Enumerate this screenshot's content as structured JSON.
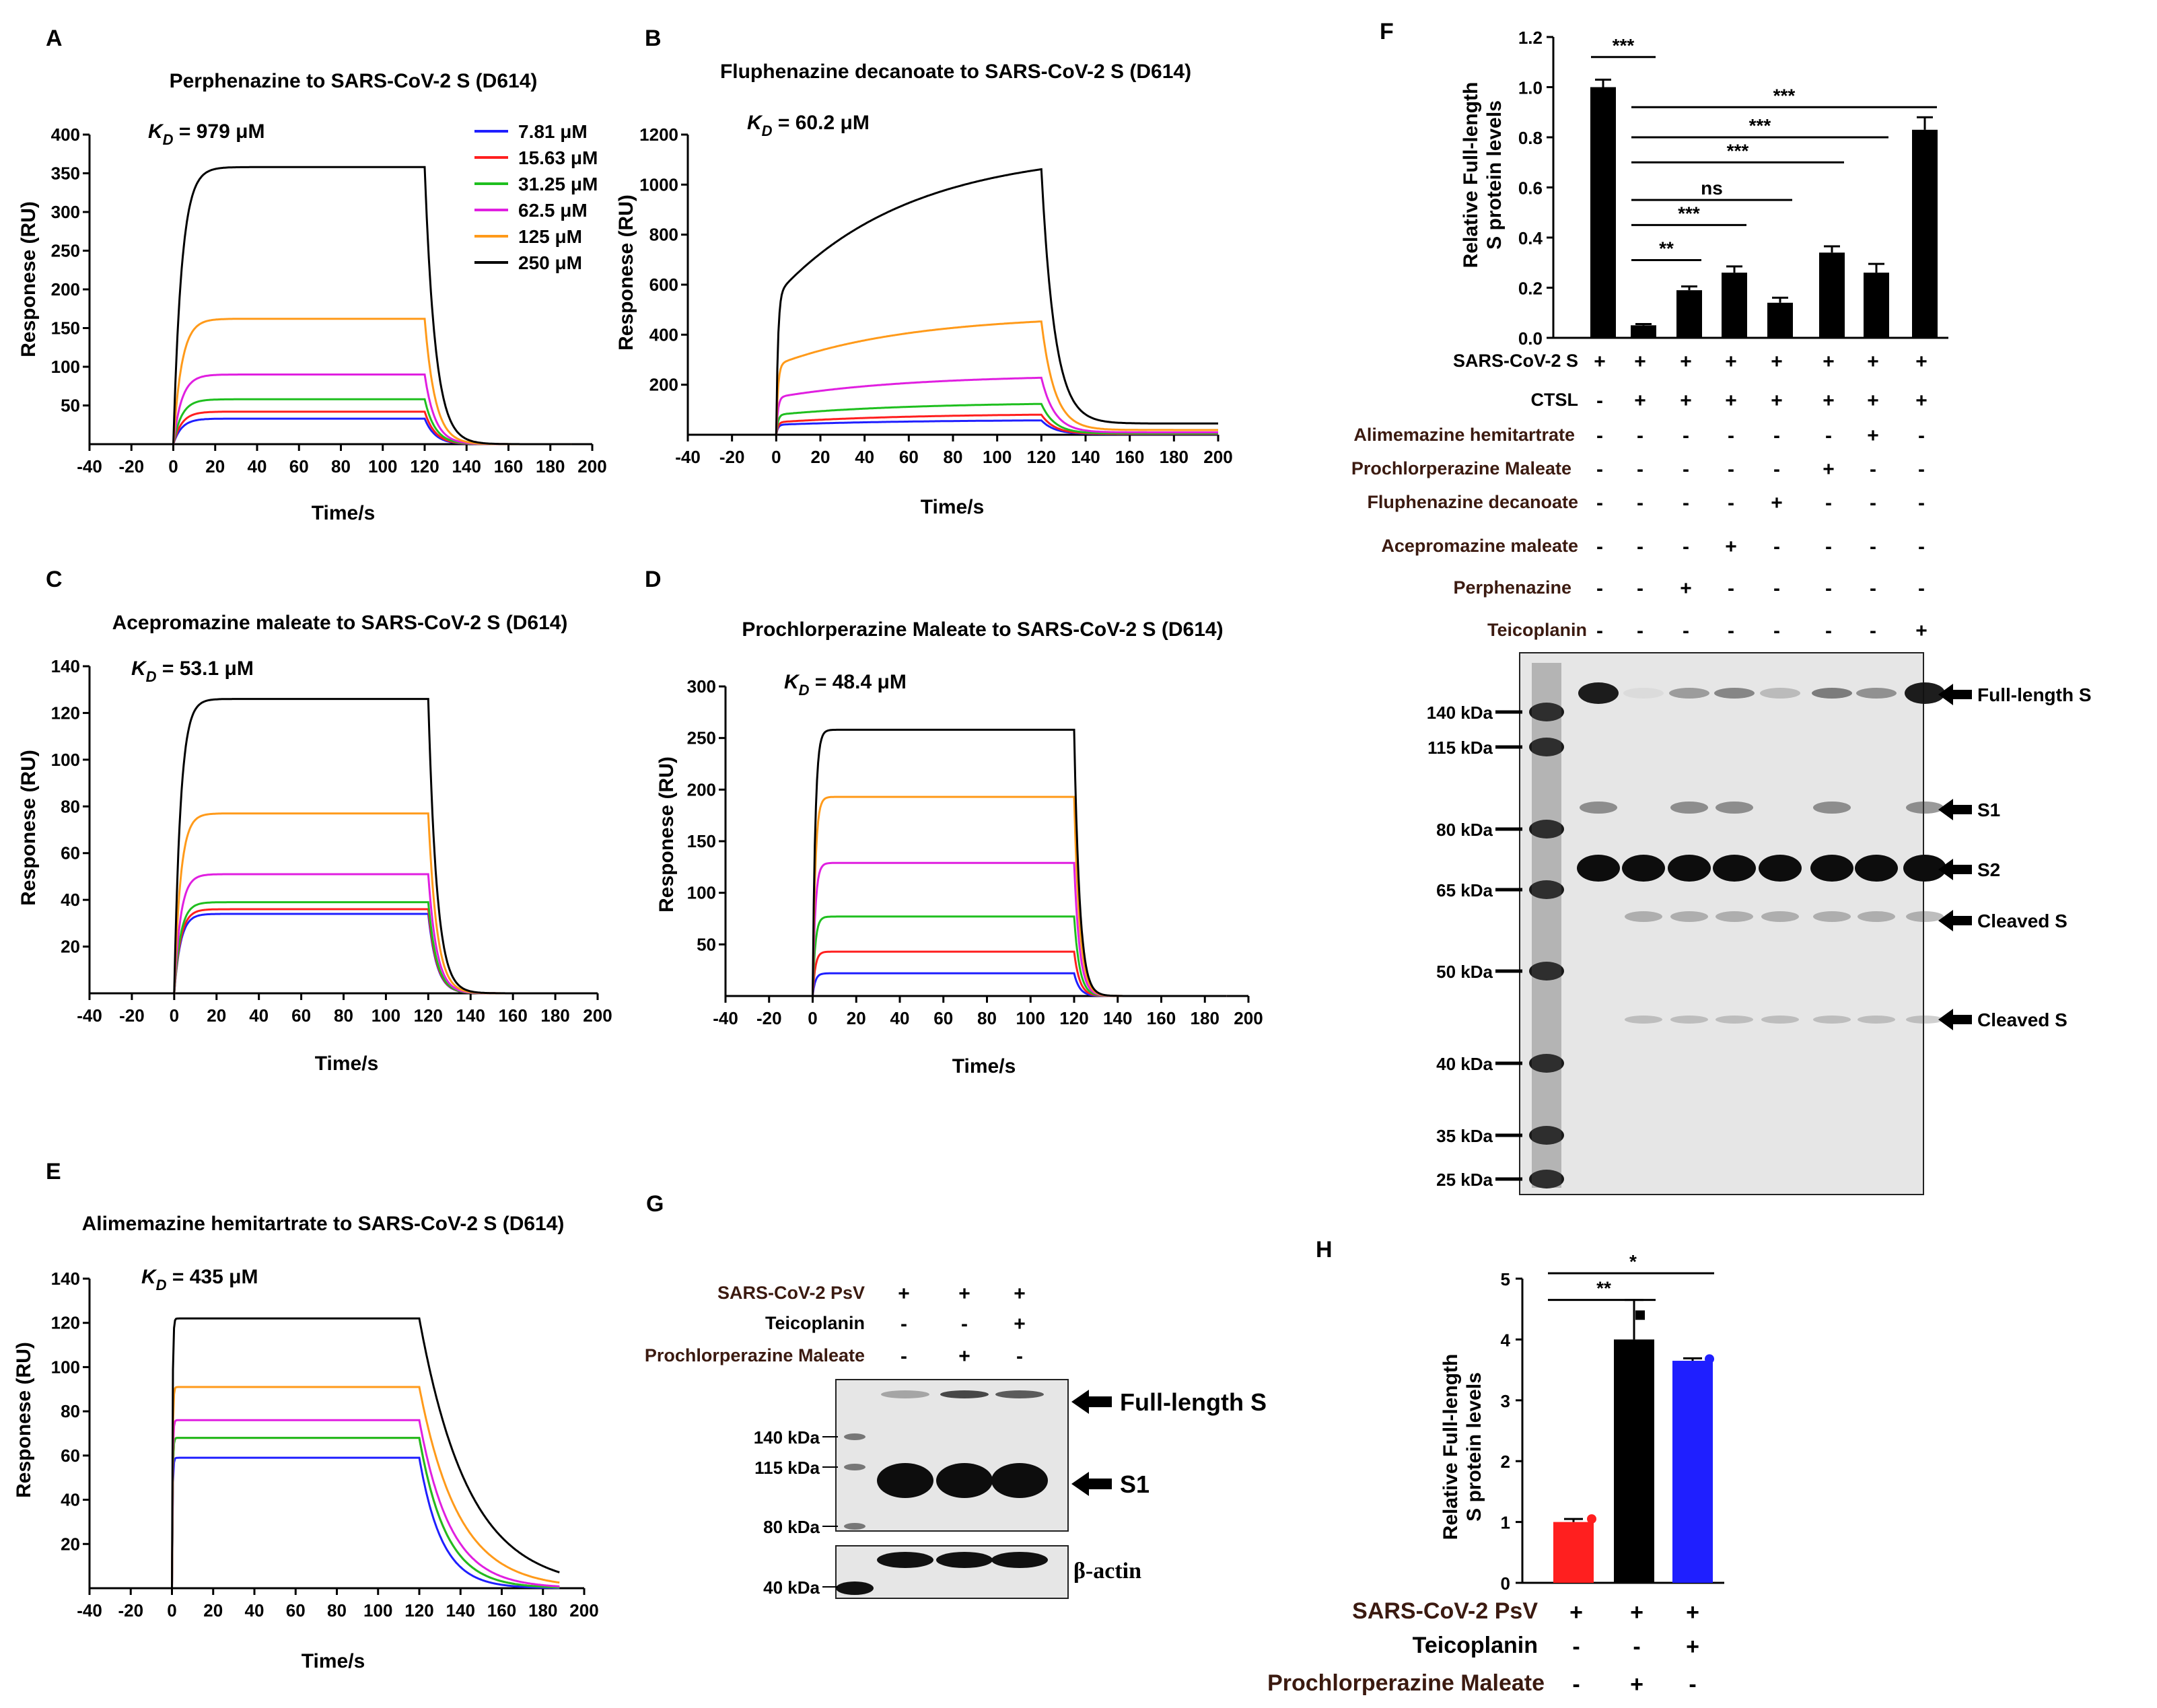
{
  "panels": {
    "A": {
      "letter": "A",
      "title": "Perphenazine to SARS-CoV-2 S (D614)",
      "kd_prefix": "K",
      "kd_sub": "D",
      "kd_value": " = 979 μM"
    },
    "B": {
      "letter": "B",
      "title": "Fluphenazine decanoate to SARS-CoV-2 S (D614)",
      "kd_prefix": "K",
      "kd_sub": "D",
      "kd_value": " = 60.2 μM"
    },
    "C": {
      "letter": "C",
      "title": "Acepromazine maleate to SARS-CoV-2 S (D614)",
      "kd_prefix": "K",
      "kd_sub": "D",
      "kd_value": " = 53.1 μM"
    },
    "D": {
      "letter": "D",
      "title": "Prochlorperazine Maleate to SARS-CoV-2 S (D614)",
      "kd_prefix": "K",
      "kd_sub": "D",
      "kd_value": " = 48.4 μM"
    },
    "E": {
      "letter": "E",
      "title": "Alimemazine hemitartrate to SARS-CoV-2 S (D614)",
      "kd_prefix": "K",
      "kd_sub": "D",
      "kd_value": " = 435 μM"
    },
    "F": {
      "letter": "F"
    },
    "G": {
      "letter": "G"
    },
    "H": {
      "letter": "H"
    }
  },
  "legend": {
    "entries": [
      {
        "label": "7.81 μM",
        "color": "#1f1fff"
      },
      {
        "label": "15.63 μM",
        "color": "#ff1f1f"
      },
      {
        "label": "31.25 μM",
        "color": "#1fbf1f"
      },
      {
        "label": "62.5 μM",
        "color": "#e01fe0"
      },
      {
        "label": "125 μM",
        "color": "#ff9a1a"
      },
      {
        "label": "250 μM",
        "color": "#000000"
      }
    ]
  },
  "chart_data": [
    {
      "id": "A",
      "type": "line",
      "title": "Perphenazine to SARS-CoV-2 S (D614)",
      "xlabel": "Time/s",
      "ylabel": "Responese (RU)",
      "xlim": [
        -40,
        200
      ],
      "ylim": [
        0,
        400
      ],
      "xticks": [
        -40,
        -20,
        0,
        20,
        40,
        60,
        80,
        100,
        120,
        140,
        160,
        180,
        200
      ],
      "yticks": [
        50,
        100,
        150,
        200,
        250,
        300,
        350,
        400
      ],
      "kinetics": {
        "assoc_end": 120,
        "tau_on": 4,
        "tau_off": 5,
        "end_time": 190
      },
      "series": [
        {
          "name": "7.81 μM",
          "plateau": 33
        },
        {
          "name": "15.63 μM",
          "plateau": 42
        },
        {
          "name": "31.25 μM",
          "plateau": 58
        },
        {
          "name": "62.5 μM",
          "plateau": 90
        },
        {
          "name": "125 μM",
          "plateau": 162
        },
        {
          "name": "250 μM",
          "plateau": 358
        }
      ]
    },
    {
      "id": "B",
      "type": "line",
      "title": "Fluphenazine decanoate to SARS-CoV-2 S (D614)",
      "xlabel": "Time/s",
      "ylabel": "Responese (RU)",
      "xlim": [
        -40,
        200
      ],
      "ylim": [
        0,
        1200
      ],
      "xticks": [
        -40,
        -20,
        0,
        20,
        40,
        60,
        80,
        100,
        120,
        140,
        160,
        180,
        200
      ],
      "yticks": [
        200,
        400,
        600,
        800,
        1000,
        1200
      ],
      "kinetics": {
        "assoc_end": 120,
        "tau_off": 6,
        "offset_end": 45,
        "end_time": 200
      },
      "series": [
        {
          "name": "7.81 μM",
          "fast": 40,
          "slow": 20
        },
        {
          "name": "15.63 μM",
          "fast": 50,
          "slow": 35
        },
        {
          "name": "31.25 μM",
          "fast": 80,
          "slow": 50
        },
        {
          "name": "62.5 μM",
          "fast": 150,
          "slow": 90
        },
        {
          "name": "125 μM",
          "fast": 280,
          "slow": 200
        },
        {
          "name": "250 μM",
          "fast": 560,
          "slow": 580
        }
      ]
    },
    {
      "id": "C",
      "type": "line",
      "title": "Acepromazine maleate to SARS-CoV-2 S (D614)",
      "xlabel": "Time/s",
      "ylabel": "Responese (RU)",
      "xlim": [
        -40,
        200
      ],
      "ylim": [
        0,
        140
      ],
      "xticks": [
        -40,
        -20,
        0,
        20,
        40,
        60,
        80,
        100,
        120,
        140,
        160,
        180,
        200
      ],
      "yticks": [
        20,
        40,
        60,
        80,
        100,
        120,
        140
      ],
      "kinetics": {
        "assoc_end": 120,
        "tau_on": 3,
        "tau_off": 4,
        "end_time": 190
      },
      "series": [
        {
          "name": "7.81 μM",
          "plateau": 34
        },
        {
          "name": "15.63 μM",
          "plateau": 36
        },
        {
          "name": "31.25 μM",
          "plateau": 39
        },
        {
          "name": "62.5 μM",
          "plateau": 51
        },
        {
          "name": "125 μM",
          "plateau": 77
        },
        {
          "name": "250 μM",
          "plateau": 126
        }
      ]
    },
    {
      "id": "D",
      "type": "line",
      "title": "Prochlorperazine Maleate to SARS-CoV-2 S (D614)",
      "xlabel": "Time/s",
      "ylabel": "Responese (RU)",
      "xlim": [
        -40,
        200
      ],
      "ylim": [
        0,
        300
      ],
      "xticks": [
        -40,
        -20,
        0,
        20,
        40,
        60,
        80,
        100,
        120,
        140,
        160,
        180,
        200
      ],
      "yticks": [
        50,
        100,
        150,
        200,
        250,
        300
      ],
      "kinetics": {
        "assoc_end": 120,
        "tau_on": 1.2,
        "tau_off": 2.5,
        "end_time": 190
      },
      "series": [
        {
          "name": "7.81 μM",
          "plateau": 22
        },
        {
          "name": "15.63 μM",
          "plateau": 43
        },
        {
          "name": "31.25 μM",
          "plateau": 77
        },
        {
          "name": "62.5 μM",
          "plateau": 129
        },
        {
          "name": "125 μM",
          "plateau": 193
        },
        {
          "name": "250 μM",
          "plateau": 258
        }
      ]
    },
    {
      "id": "E",
      "type": "line",
      "title": "Alimemazine hemitartrate to SARS-CoV-2 S (D614)",
      "xlabel": "Time/s",
      "ylabel": "Responese (RU)",
      "xlim": [
        -40,
        200
      ],
      "ylim": [
        0,
        140
      ],
      "xticks": [
        -40,
        -20,
        0,
        20,
        40,
        60,
        80,
        100,
        120,
        140,
        160,
        180,
        200
      ],
      "yticks": [
        20,
        40,
        60,
        80,
        100,
        120,
        140
      ],
      "kinetics": {
        "assoc_end": 120,
        "tau_on": 0.3,
        "end_time": 188
      },
      "series": [
        {
          "name": "7.81 μM",
          "plateau": 59,
          "tau_off": 11
        },
        {
          "name": "15.63 μM",
          "plateau": 68,
          "tau_off": 13
        },
        {
          "name": "31.25 μM",
          "plateau": 68,
          "tau_off": 13
        },
        {
          "name": "62.5 μM",
          "plateau": 76,
          "tau_off": 15
        },
        {
          "name": "125 μM",
          "plateau": 91,
          "tau_off": 19
        },
        {
          "name": "250 μM",
          "plateau": 122,
          "tau_off": 24
        }
      ]
    },
    {
      "id": "F",
      "type": "bar",
      "ylabel_line1": "Relative Full-length",
      "ylabel_line2": "S protein levels",
      "ylim": [
        0,
        1.2
      ],
      "yticks": [
        "0.0",
        "0.2",
        "0.4",
        "0.6",
        "0.8",
        "1.0",
        "1.2"
      ],
      "values": [
        1.0,
        0.05,
        0.19,
        0.26,
        0.14,
        0.34,
        0.26,
        0.83
      ],
      "errors": [
        0.03,
        0.005,
        0.015,
        0.025,
        0.02,
        0.025,
        0.035,
        0.05
      ],
      "significance": [
        {
          "from": 0,
          "to": 1,
          "label": "***",
          "y": 1.12
        },
        {
          "from": 1,
          "to": 7,
          "label": "***",
          "y": 0.92
        },
        {
          "from": 1,
          "to": 6,
          "label": "***",
          "y": 0.8
        },
        {
          "from": 1,
          "to": 5,
          "label": "***",
          "y": 0.7
        },
        {
          "from": 1,
          "to": 4,
          "label": "ns",
          "y": 0.55
        },
        {
          "from": 1,
          "to": 3,
          "label": "***",
          "y": 0.45
        },
        {
          "from": 1,
          "to": 2,
          "label": "**",
          "y": 0.31
        }
      ]
    },
    {
      "id": "H",
      "type": "bar",
      "ylabel_line1": "Relative Full-length",
      "ylabel_line2": "S protein levels",
      "ylim": [
        0,
        5
      ],
      "yticks": [
        "0",
        "1",
        "2",
        "3",
        "4",
        "5"
      ],
      "values": [
        1.0,
        4.0,
        3.65
      ],
      "errors": [
        0.05,
        0.65,
        0.04
      ],
      "colors": [
        "#ff1f1f",
        "#000000",
        "#1f1fff"
      ],
      "significance": [
        {
          "from": 0,
          "to": 1,
          "label": "**",
          "y": 4.65
        },
        {
          "from": 0,
          "to": 2,
          "label": "*",
          "y": 5.0
        }
      ]
    }
  ],
  "F_conditions": {
    "rows": [
      {
        "label": "SARS-CoV-2 S",
        "signs": [
          "+",
          "+",
          "+",
          "+",
          "+",
          "+",
          "+",
          "+"
        ]
      },
      {
        "label": "CTSL",
        "signs": [
          "-",
          "+",
          "+",
          "+",
          "+",
          "+",
          "+",
          "+"
        ]
      },
      {
        "label": "Alimemazine  hemitartrate",
        "signs": [
          "-",
          "-",
          "-",
          "-",
          "-",
          "-",
          "+",
          "-"
        ]
      },
      {
        "label": "Prochlorperazine Maleate",
        "signs": [
          "-",
          "-",
          "-",
          "-",
          "-",
          "+",
          "-",
          "-"
        ]
      },
      {
        "label": "Fluphenazine decanoate",
        "signs": [
          "-",
          "-",
          "-",
          "-",
          "+",
          "-",
          "-",
          "-"
        ]
      },
      {
        "label": "Acepromazine maleate",
        "signs": [
          "-",
          "-",
          "-",
          "+",
          "-",
          "-",
          "-",
          "-"
        ]
      },
      {
        "label": "Perphenazine",
        "signs": [
          "-",
          "-",
          "+",
          "-",
          "-",
          "-",
          "-",
          "-"
        ]
      },
      {
        "label": "Teicoplanin",
        "signs": [
          "-",
          "-",
          "-",
          "-",
          "-",
          "-",
          "-",
          "+"
        ]
      }
    ]
  },
  "F_blot": {
    "markers": [
      "140 kDa",
      "115 kDa",
      "80 kDa",
      "65 kDa",
      "50 kDa",
      "40 kDa",
      "35 kDa",
      "25 kDa"
    ],
    "bands": [
      "Full-length S",
      "S1",
      "S2",
      "Cleaved S",
      "Cleaved S"
    ]
  },
  "G_conditions": {
    "rows": [
      {
        "label": "SARS-CoV-2 PsV",
        "signs": [
          "+",
          "+",
          "+"
        ]
      },
      {
        "label": "Teicoplanin",
        "signs": [
          "-",
          "-",
          "+"
        ]
      },
      {
        "label": "Prochlorperazine Maleate",
        "signs": [
          "-",
          "+",
          "-"
        ]
      }
    ]
  },
  "G_blot": {
    "markers": [
      "140 kDa",
      "115 kDa",
      "80 kDa",
      "40 kDa"
    ],
    "bands": [
      "Full-length S",
      "S1"
    ],
    "loading_label": "β-actin"
  },
  "H_conditions": {
    "rows": [
      {
        "label": "SARS-CoV-2 PsV",
        "signs": [
          "+",
          "+",
          "+"
        ]
      },
      {
        "label": "Teicoplanin",
        "signs": [
          "-",
          "-",
          "+"
        ]
      },
      {
        "label": "Prochlorperazine Maleate",
        "signs": [
          "-",
          "+",
          "-"
        ]
      }
    ]
  }
}
